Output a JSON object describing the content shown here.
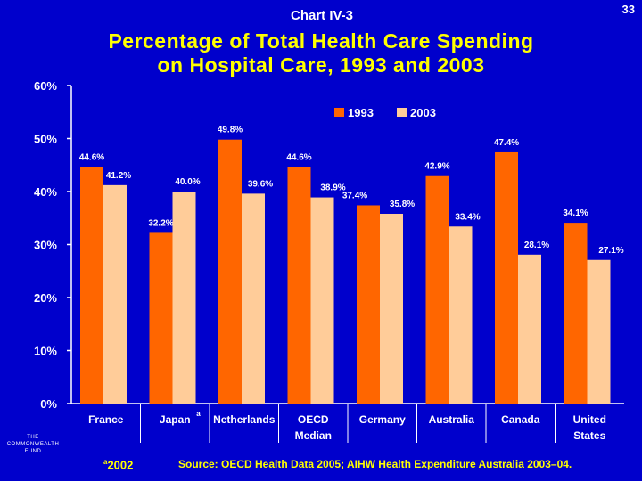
{
  "chart_label": "Chart IV-3",
  "page_number": "33",
  "logo_text": "THE COMMONWEALTH FUND",
  "footnote": {
    "marker": "a",
    "text": "2002"
  },
  "source": "Source: OECD Health Data 2005; AIHW Health Expenditure Australia 2003–04.",
  "colors": {
    "background": "#0000CC",
    "title": "#FFFF00",
    "series_1993": "#FF6600",
    "series_2003": "#FFCC99",
    "text": "#FFFFFF"
  },
  "chart_data": {
    "type": "bar",
    "title": [
      "Percentage of Total Health Care Spending",
      "on Hospital Care, 1993 and 2003"
    ],
    "categories": [
      "France",
      "Japan",
      "Netherlands",
      "OECD Median",
      "Germany",
      "Australia",
      "Canada",
      "United States"
    ],
    "category_lines": [
      [
        "France"
      ],
      [
        "Japan"
      ],
      [
        "Netherlands"
      ],
      [
        "OECD",
        "Median"
      ],
      [
        "Germany"
      ],
      [
        "Australia"
      ],
      [
        "Canada"
      ],
      [
        "United",
        "States"
      ]
    ],
    "category_superscripts": [
      "",
      "a",
      "",
      "",
      "",
      "",
      "",
      ""
    ],
    "series": [
      {
        "name": "1993",
        "values": [
          44.6,
          32.2,
          49.8,
          44.6,
          37.4,
          42.9,
          47.4,
          34.1
        ],
        "labels": [
          "44.6%",
          "32.2%",
          "49.8%",
          "44.6%",
          "37.4%",
          "42.9%",
          "47.4%",
          "34.1%"
        ]
      },
      {
        "name": "2003",
        "values": [
          41.2,
          40.0,
          39.6,
          38.9,
          35.8,
          33.4,
          28.1,
          27.1
        ],
        "labels": [
          "41.2%",
          "40.0%",
          "39.6%",
          "38.9%",
          "35.8%",
          "33.4%",
          "28.1%",
          "27.1%"
        ]
      }
    ],
    "ylim": [
      0,
      60
    ],
    "yticks": [
      0,
      10,
      20,
      30,
      40,
      50,
      60
    ],
    "ytick_labels": [
      "0%",
      "10%",
      "20%",
      "30%",
      "40%",
      "50%",
      "60%"
    ],
    "legend": [
      "1993",
      "2003"
    ],
    "legend_position": "top-right",
    "xlabel": "",
    "ylabel": "",
    "grid": false
  }
}
